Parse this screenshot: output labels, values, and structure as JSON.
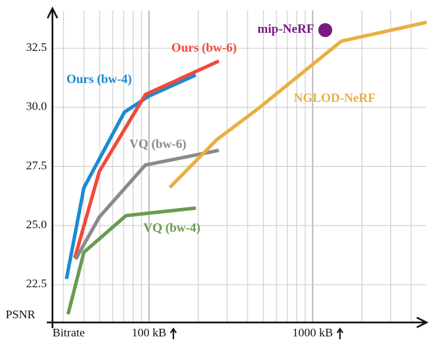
{
  "chart_data": {
    "type": "line",
    "xlabel": "Bitrate",
    "ylabel": "PSNR",
    "xscale": "log",
    "grid": true,
    "xlim": [
      25.7,
      4970
    ],
    "ylim": [
      20.9,
      34.1
    ],
    "xticks": [
      {
        "value": 100,
        "label": "100 kB"
      },
      {
        "value": 1000,
        "label": "1000 kB"
      }
    ],
    "xminor": [
      30,
      40,
      50,
      60,
      70,
      80,
      90,
      200,
      300,
      400,
      500,
      600,
      700,
      800,
      900,
      2000,
      3000,
      4000
    ],
    "yticks": [
      {
        "value": 22.5,
        "label": "22.5"
      },
      {
        "value": 25,
        "label": "25.0"
      },
      27.5,
      {
        "value": 30,
        "label": "30.0"
      },
      32.5
    ],
    "series": [
      {
        "name": "Ours (bw-4)",
        "color": "#1a8ad4",
        "x": [
          31.3,
          40,
          70.8,
          100,
          193
        ],
        "values": [
          22.74,
          26.6,
          29.8,
          30.48,
          31.37
        ]
      },
      {
        "name": "Ours (bw-6)",
        "color": "#f04a3a",
        "x": [
          35.2,
          49.7,
          95,
          267
        ],
        "values": [
          23.63,
          27.29,
          30.54,
          31.96
        ]
      },
      {
        "name": "VQ (bw-6)",
        "color": "#8a8a8a",
        "x": [
          35.6,
          49.7,
          95,
          267
        ],
        "values": [
          23.57,
          25.36,
          27.56,
          28.18
        ]
      },
      {
        "name": "VQ (bw-4)",
        "color": "#6a9a50",
        "x": [
          32,
          40,
          72.3,
          193
        ],
        "values": [
          21.25,
          23.87,
          25.42,
          25.74
        ]
      },
      {
        "name": "NGLOD-NeRF",
        "color": "#e8b040",
        "x": [
          134,
          259,
          469,
          1496,
          4966
        ],
        "values": [
          26.61,
          28.63,
          29.97,
          32.8,
          33.6
        ]
      }
    ],
    "points": [
      {
        "name": "mip-NeRF",
        "color": "#7a1a80",
        "x": 1194,
        "value": 33.27
      }
    ]
  }
}
